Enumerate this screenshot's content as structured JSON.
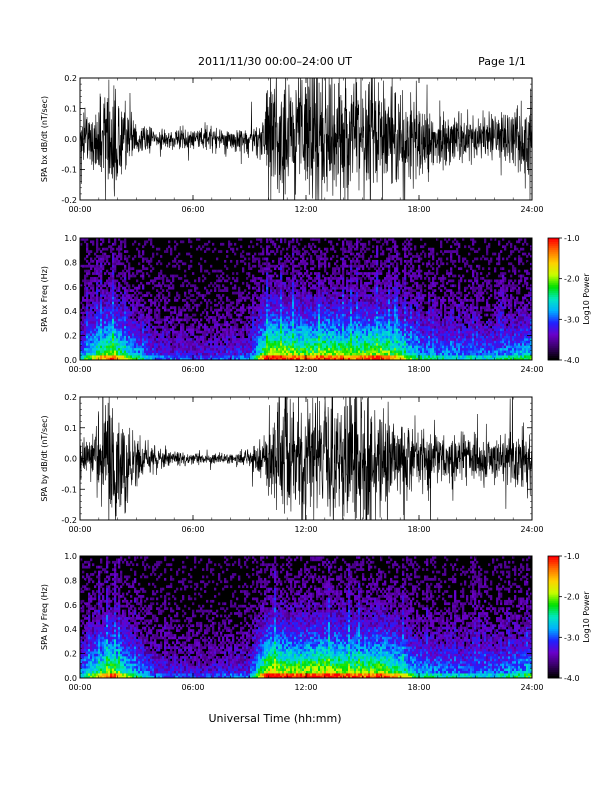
{
  "header": {
    "title": "2011/11/30  00:00–24:00 UT",
    "page": "Page 1/1"
  },
  "footer": {
    "xlabel": "Universal Time (hh:mm)"
  },
  "colors": {
    "trace": "#000000",
    "spectrogram_background": "#000000",
    "colorscale": [
      "#000000",
      "#3a006a",
      "#6a00c8",
      "#2020ff",
      "#00b0ff",
      "#00e8c0",
      "#00e000",
      "#c8ff00",
      "#ffd000",
      "#ff7000",
      "#ff0000"
    ]
  },
  "chart_data": [
    {
      "type": "line",
      "title": "",
      "xlabel": "",
      "ylabel": "SPA bx dB/dt (nT/sec)",
      "xlim": [
        "00:00",
        "24:00"
      ],
      "xticks": [
        "00:00",
        "06:00",
        "12:00",
        "18:00",
        "24:00"
      ],
      "ylim": [
        -0.2,
        0.2
      ],
      "yticks": [
        "-0.2",
        "-0.1",
        "0.0",
        "0.1",
        "0.2"
      ],
      "envelope": {
        "x": [
          0,
          0.5,
          1,
          1.5,
          1.8,
          2,
          2.5,
          3,
          3.5,
          4,
          5,
          6,
          7,
          8,
          9,
          9.5,
          9.8,
          10,
          11,
          12,
          13,
          14,
          15,
          16,
          17,
          18,
          19,
          20,
          21,
          22,
          23,
          24
        ],
        "amplitude": [
          0.07,
          0.09,
          0.12,
          0.25,
          0.25,
          0.2,
          0.12,
          0.07,
          0.05,
          0.04,
          0.04,
          0.04,
          0.04,
          0.04,
          0.05,
          0.06,
          0.07,
          0.25,
          0.25,
          0.25,
          0.25,
          0.25,
          0.25,
          0.2,
          0.18,
          0.15,
          0.1,
          0.1,
          0.09,
          0.09,
          0.12,
          0.15
        ]
      },
      "grid": false
    },
    {
      "type": "heatmap",
      "title": "",
      "xlabel": "",
      "ylabel": "SPA bx Freq (Hz)",
      "xlim": [
        "00:00",
        "24:00"
      ],
      "xticks": [
        "00:00",
        "06:00",
        "12:00",
        "18:00",
        "24:00"
      ],
      "ylim": [
        0.0,
        1.0
      ],
      "yticks": [
        "0.0",
        "0.2",
        "0.4",
        "0.6",
        "0.8",
        "1.0"
      ],
      "colorbar": {
        "label": "Log10 Power",
        "range": [
          -4.0,
          -1.0
        ],
        "ticks": [
          "-1.0",
          "-2.0",
          "-3.0",
          "-4.0"
        ]
      },
      "activity": {
        "x": [
          0,
          1,
          1.7,
          2.5,
          4,
          6,
          9,
          10,
          11,
          12,
          13,
          14,
          15,
          16,
          17,
          18,
          20,
          22,
          24
        ],
        "level": [
          0.35,
          0.6,
          0.75,
          0.5,
          0.25,
          0.2,
          0.25,
          0.8,
          0.75,
          0.7,
          0.75,
          0.7,
          0.7,
          0.75,
          0.6,
          0.4,
          0.35,
          0.35,
          0.45
        ]
      },
      "grid": false
    },
    {
      "type": "line",
      "title": "",
      "xlabel": "",
      "ylabel": "SPA by dB/dt (nT/sec)",
      "xlim": [
        "00:00",
        "24:00"
      ],
      "xticks": [
        "00:00",
        "06:00",
        "12:00",
        "18:00",
        "24:00"
      ],
      "ylim": [
        -0.2,
        0.2
      ],
      "yticks": [
        "-0.2",
        "-0.1",
        "0.0",
        "0.1",
        "0.2"
      ],
      "envelope": {
        "x": [
          0,
          0.5,
          1,
          1.5,
          1.8,
          2,
          2.5,
          3,
          3.5,
          4,
          5,
          6,
          7,
          8,
          9,
          9.5,
          9.8,
          10,
          11,
          12,
          13,
          14,
          15,
          16,
          17,
          18,
          19,
          20,
          21,
          22,
          23,
          24
        ],
        "amplitude": [
          0.06,
          0.08,
          0.12,
          0.25,
          0.25,
          0.2,
          0.15,
          0.09,
          0.06,
          0.04,
          0.03,
          0.025,
          0.02,
          0.02,
          0.03,
          0.06,
          0.08,
          0.22,
          0.25,
          0.25,
          0.25,
          0.25,
          0.25,
          0.2,
          0.15,
          0.12,
          0.09,
          0.09,
          0.08,
          0.08,
          0.1,
          0.12
        ]
      },
      "grid": false
    },
    {
      "type": "heatmap",
      "title": "",
      "xlabel": "",
      "ylabel": "SPA by Freq (Hz)",
      "xlim": [
        "00:00",
        "24:00"
      ],
      "xticks": [
        "00:00",
        "06:00",
        "12:00",
        "18:00",
        "24:00"
      ],
      "ylim": [
        0.0,
        1.0
      ],
      "yticks": [
        "0.0",
        "0.2",
        "0.4",
        "0.6",
        "0.8",
        "1.0"
      ],
      "colorbar": {
        "label": "Log10 Power",
        "range": [
          -4.0,
          -1.0
        ],
        "ticks": [
          "-1.0",
          "-2.0",
          "-3.0",
          "-4.0"
        ]
      },
      "activity": {
        "x": [
          0,
          1,
          1.7,
          2.5,
          4,
          6,
          9,
          10,
          11,
          12,
          13,
          14,
          15,
          16,
          17,
          18,
          20,
          22,
          24
        ],
        "level": [
          0.35,
          0.6,
          0.75,
          0.5,
          0.25,
          0.2,
          0.25,
          0.85,
          0.75,
          0.75,
          0.8,
          0.75,
          0.7,
          0.75,
          0.6,
          0.4,
          0.35,
          0.35,
          0.45
        ]
      },
      "grid": false
    }
  ]
}
